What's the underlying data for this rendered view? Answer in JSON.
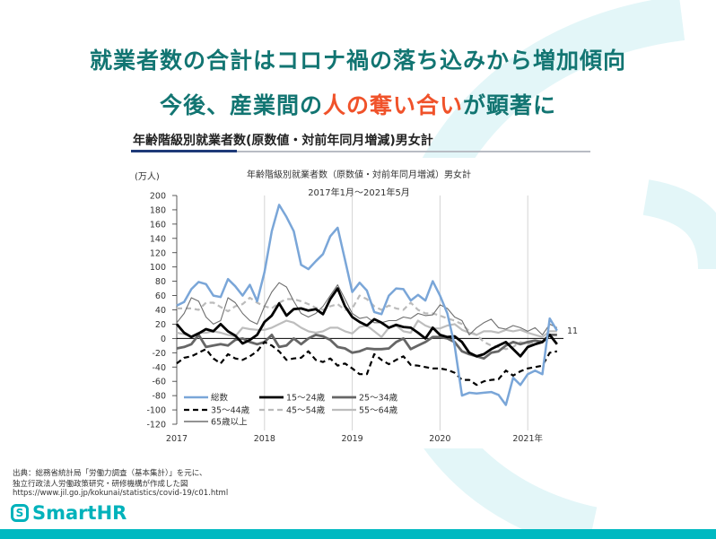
{
  "slide": {
    "title_line1": "就業者数の合計はコロナ禍の落ち込みから増加傾向",
    "title_line2_pre": "今後、産業間の",
    "title_line2_accent": "人の奪い合い",
    "title_line2_post": "が顕著に",
    "title_color": "#127572",
    "accent_color": "#f0522a",
    "chart_heading": "年齢階級別就業者数(原数値・対前年同月増減)男女計",
    "source_lines": [
      "出典：総務省統計局「労働力調査（基本集計）」を元に、",
      "独立行政法人労働政策研究・研修機構が作成した図",
      "https://www.jil.go.jp/kokunai/statistics/covid-19/c01.html"
    ],
    "logo_text": "SmartHR",
    "brand_color": "#00b2bb"
  },
  "chart_data": {
    "type": "line",
    "title": "年齢階級別就業者数（原数値・対前年同月増減）男女計",
    "subtitle": "2017年1月～2021年5月",
    "ylabel": "(万人)",
    "ylim": [
      -120,
      200
    ],
    "yticks": [
      "200",
      "180",
      "160",
      "140",
      "120",
      "100",
      "80",
      "60",
      "40",
      "20",
      "0",
      "-20",
      "-40",
      "-60",
      "-80",
      "-100",
      "-120"
    ],
    "xticks": [
      "2017",
      "2018",
      "2019",
      "2020",
      "2021年"
    ],
    "x_start": "2017-01",
    "x_end": "2021-05",
    "grid": "vertical year lines",
    "legend": "bottom-left",
    "end_label": "11",
    "series": [
      {
        "name": "総数",
        "color": "#7aa6d8",
        "style": "solid",
        "width": 2.5,
        "values": [
          46,
          51,
          69,
          79,
          76,
          60,
          58,
          83,
          73,
          60,
          75,
          52,
          93,
          150,
          187,
          170,
          150,
          103,
          97,
          108,
          118,
          143,
          155,
          110,
          65,
          78,
          67,
          37,
          34,
          60,
          70,
          69,
          53,
          61,
          53,
          80,
          60,
          35,
          -10,
          -80,
          -76,
          -77,
          -76,
          -75,
          -79,
          -93,
          -55,
          -65,
          -50,
          -45,
          -50,
          28,
          11
        ]
      },
      {
        "name": "15～24歳",
        "color": "#000000",
        "style": "solid",
        "width": 2.8,
        "values": [
          20,
          8,
          2,
          7,
          13,
          10,
          20,
          10,
          4,
          -7,
          -2,
          5,
          23,
          32,
          49,
          32,
          41,
          42,
          39,
          41,
          34,
          55,
          70,
          45,
          30,
          23,
          18,
          27,
          22,
          15,
          19,
          16,
          15,
          8,
          0,
          15,
          5,
          2,
          3,
          -5,
          -20,
          -25,
          -22,
          -15,
          -10,
          -5,
          -15,
          -25,
          -12,
          -8,
          -5,
          5,
          -8
        ]
      },
      {
        "name": "25～34歳",
        "color": "#666666",
        "style": "solid",
        "width": 2.8,
        "values": [
          -14,
          -12,
          -8,
          5,
          -12,
          -10,
          -8,
          -10,
          -2,
          0,
          -5,
          -8,
          -5,
          5,
          -12,
          -10,
          0,
          -8,
          0,
          5,
          3,
          -2,
          -12,
          -14,
          -20,
          -18,
          -14,
          -15,
          -15,
          -14,
          -5,
          0,
          -15,
          -10,
          -5,
          2,
          2,
          0,
          -5,
          -18,
          -22,
          -25,
          -28,
          -20,
          -18,
          -10,
          -5,
          -8,
          -5,
          -3,
          -5,
          5,
          5
        ]
      },
      {
        "name": "35～44歳",
        "color": "#000000",
        "style": "dashed",
        "width": 2.2,
        "values": [
          -35,
          -27,
          -25,
          -20,
          -15,
          -28,
          -35,
          -22,
          -28,
          -30,
          -25,
          -18,
          -5,
          -10,
          -18,
          -30,
          -28,
          -27,
          -18,
          -30,
          -33,
          -28,
          -38,
          -35,
          -42,
          -50,
          -50,
          -22,
          -30,
          -36,
          -30,
          -25,
          -37,
          -38,
          -40,
          -42,
          -42,
          -44,
          -48,
          -58,
          -58,
          -65,
          -60,
          -58,
          -57,
          -45,
          -52,
          -46,
          -42,
          -40,
          -38,
          -20,
          -18
        ]
      },
      {
        "name": "45～54歳",
        "color": "#bbbbbb",
        "style": "dashed",
        "width": 2.2,
        "values": [
          42,
          42,
          42,
          40,
          50,
          50,
          44,
          38,
          45,
          48,
          57,
          50,
          45,
          42,
          50,
          55,
          55,
          52,
          48,
          43,
          40,
          45,
          48,
          40,
          42,
          60,
          55,
          45,
          40,
          46,
          42,
          40,
          50,
          40,
          35,
          35,
          32,
          28,
          25,
          20,
          10,
          5,
          -5,
          -10,
          -12,
          -15,
          -12,
          -5,
          -8,
          -5,
          -3,
          5,
          5
        ]
      },
      {
        "name": "55～64歳",
        "color": "#bdbdbd",
        "style": "solid",
        "width": 2.2,
        "values": [
          8,
          6,
          3,
          8,
          8,
          10,
          8,
          5,
          3,
          15,
          13,
          12,
          12,
          15,
          20,
          25,
          22,
          15,
          10,
          8,
          10,
          15,
          15,
          10,
          7,
          16,
          18,
          10,
          2,
          15,
          18,
          10,
          8,
          25,
          18,
          14,
          14,
          18,
          20,
          12,
          8,
          5,
          10,
          10,
          8,
          12,
          10,
          12,
          8,
          5,
          2,
          10,
          10
        ]
      },
      {
        "name": "65歳以上",
        "color": "#6e6e6e",
        "style": "solid",
        "width": 1.1,
        "values": [
          22,
          35,
          57,
          52,
          30,
          20,
          25,
          57,
          50,
          35,
          25,
          20,
          45,
          65,
          78,
          72,
          52,
          35,
          30,
          35,
          45,
          60,
          75,
          55,
          35,
          28,
          30,
          22,
          22,
          25,
          25,
          30,
          28,
          35,
          32,
          33,
          47,
          42,
          30,
          25,
          5,
          15,
          22,
          27,
          15,
          13,
          18,
          15,
          10,
          15,
          5,
          20,
          15
        ]
      }
    ]
  }
}
